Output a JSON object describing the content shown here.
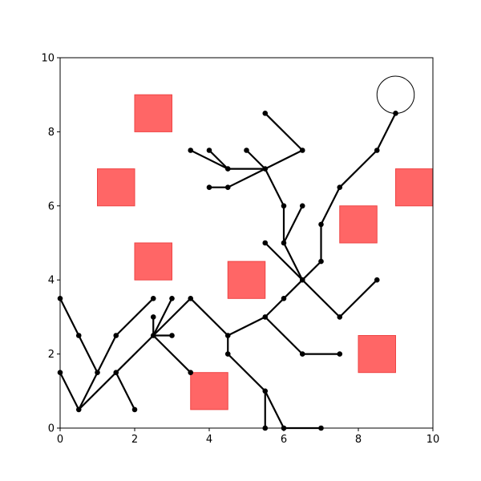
{
  "chart_data": {
    "type": "scatter",
    "title": "",
    "xlabel": "",
    "ylabel": "",
    "xlim": [
      0,
      10
    ],
    "ylim": [
      0,
      10
    ],
    "xticks": [
      0,
      2,
      4,
      6,
      8,
      10
    ],
    "yticks": [
      0,
      2,
      4,
      6,
      8,
      10
    ],
    "xtick_labels": [
      "0",
      "2",
      "4",
      "6",
      "8",
      "10"
    ],
    "ytick_labels": [
      "0",
      "2",
      "4",
      "6",
      "8",
      "10"
    ],
    "grid": false,
    "obstacles": [
      {
        "x": 2,
        "y": 8,
        "w": 1,
        "h": 1
      },
      {
        "x": 1,
        "y": 6,
        "w": 1,
        "h": 1
      },
      {
        "x": 2,
        "y": 4,
        "w": 1,
        "h": 1
      },
      {
        "x": 4.5,
        "y": 3.5,
        "w": 1,
        "h": 1
      },
      {
        "x": 3.5,
        "y": 0.5,
        "w": 1,
        "h": 1
      },
      {
        "x": 7.5,
        "y": 5,
        "w": 1,
        "h": 1
      },
      {
        "x": 9,
        "y": 6,
        "w": 1,
        "h": 1
      },
      {
        "x": 8,
        "y": 1.5,
        "w": 1,
        "h": 1
      }
    ],
    "goal": {
      "x": 9,
      "y": 9,
      "r": 0.5
    },
    "nodes": [
      [
        0,
        3.5
      ],
      [
        0.5,
        2.5
      ],
      [
        1,
        1.5
      ],
      [
        0.5,
        0.5
      ],
      [
        0,
        1.5
      ],
      [
        1.5,
        2.5
      ],
      [
        2.5,
        3.5
      ],
      [
        1.5,
        1.5
      ],
      [
        2,
        0.5
      ],
      [
        2.5,
        2.5
      ],
      [
        2.5,
        3
      ],
      [
        3,
        3.5
      ],
      [
        3,
        2.5
      ],
      [
        3.5,
        1.5
      ],
      [
        3.5,
        3.5
      ],
      [
        4.5,
        2.5
      ],
      [
        4.5,
        2
      ],
      [
        5.5,
        1
      ],
      [
        5.5,
        0
      ],
      [
        6,
        0
      ],
      [
        7,
        0
      ],
      [
        5.5,
        3
      ],
      [
        6.5,
        2
      ],
      [
        7.5,
        2
      ],
      [
        6,
        3.5
      ],
      [
        6.5,
        4
      ],
      [
        5.5,
        5
      ],
      [
        7.5,
        3
      ],
      [
        8.5,
        4
      ],
      [
        7,
        4.5
      ],
      [
        7,
        5.5
      ],
      [
        7.5,
        6.5
      ],
      [
        8.5,
        7.5
      ],
      [
        9,
        8.5
      ],
      [
        6,
        5
      ],
      [
        6,
        6
      ],
      [
        6.5,
        6
      ],
      [
        5.5,
        7
      ],
      [
        5.5,
        8.5
      ],
      [
        6.5,
        7.5
      ],
      [
        5,
        7.5
      ],
      [
        4.5,
        7
      ],
      [
        3.5,
        7.5
      ],
      [
        4,
        7.5
      ],
      [
        4.5,
        6.5
      ],
      [
        4,
        6.5
      ]
    ],
    "edges": [
      [
        [
          0,
          3.5
        ],
        [
          0.5,
          2.5
        ]
      ],
      [
        [
          0.5,
          2.5
        ],
        [
          1,
          1.5
        ]
      ],
      [
        [
          1,
          1.5
        ],
        [
          0.5,
          0.5
        ]
      ],
      [
        [
          0.5,
          0.5
        ],
        [
          0,
          1.5
        ]
      ],
      [
        [
          1,
          1.5
        ],
        [
          1.5,
          2.5
        ]
      ],
      [
        [
          1.5,
          2.5
        ],
        [
          2.5,
          3.5
        ]
      ],
      [
        [
          0.5,
          0.5
        ],
        [
          1.5,
          1.5
        ]
      ],
      [
        [
          1.5,
          1.5
        ],
        [
          2,
          0.5
        ]
      ],
      [
        [
          1.5,
          1.5
        ],
        [
          2.5,
          2.5
        ]
      ],
      [
        [
          2.5,
          2.5
        ],
        [
          2.5,
          3
        ]
      ],
      [
        [
          2.5,
          2.5
        ],
        [
          3,
          3.5
        ]
      ],
      [
        [
          2.5,
          2.5
        ],
        [
          3,
          2.5
        ]
      ],
      [
        [
          2.5,
          2.5
        ],
        [
          3.5,
          1.5
        ]
      ],
      [
        [
          2.5,
          2.5
        ],
        [
          3.5,
          3.5
        ]
      ],
      [
        [
          3.5,
          3.5
        ],
        [
          4.5,
          2.5
        ]
      ],
      [
        [
          4.5,
          2.5
        ],
        [
          4.5,
          2
        ]
      ],
      [
        [
          4.5,
          2
        ],
        [
          5.5,
          1
        ]
      ],
      [
        [
          5.5,
          1
        ],
        [
          5.5,
          0
        ]
      ],
      [
        [
          5.5,
          1
        ],
        [
          6,
          0
        ]
      ],
      [
        [
          6,
          0
        ],
        [
          7,
          0
        ]
      ],
      [
        [
          4.5,
          2.5
        ],
        [
          5.5,
          3
        ]
      ],
      [
        [
          5.5,
          3
        ],
        [
          6.5,
          2
        ]
      ],
      [
        [
          6.5,
          2
        ],
        [
          7.5,
          2
        ]
      ],
      [
        [
          5.5,
          3
        ],
        [
          6,
          3.5
        ]
      ],
      [
        [
          6,
          3.5
        ],
        [
          6.5,
          4
        ]
      ],
      [
        [
          6.5,
          4
        ],
        [
          5.5,
          5
        ]
      ],
      [
        [
          6.5,
          4
        ],
        [
          7.5,
          3
        ]
      ],
      [
        [
          7.5,
          3
        ],
        [
          8.5,
          4
        ]
      ],
      [
        [
          6.5,
          4
        ],
        [
          7,
          4.5
        ]
      ],
      [
        [
          7,
          4.5
        ],
        [
          7,
          5.5
        ]
      ],
      [
        [
          7,
          5.5
        ],
        [
          7.5,
          6.5
        ]
      ],
      [
        [
          7.5,
          6.5
        ],
        [
          8.5,
          7.5
        ]
      ],
      [
        [
          8.5,
          7.5
        ],
        [
          9,
          8.5
        ]
      ],
      [
        [
          6.5,
          4
        ],
        [
          6,
          5
        ]
      ],
      [
        [
          6,
          5
        ],
        [
          6,
          6
        ]
      ],
      [
        [
          6,
          5
        ],
        [
          6.5,
          6
        ]
      ],
      [
        [
          6,
          6
        ],
        [
          5.5,
          7
        ]
      ],
      [
        [
          5.5,
          7
        ],
        [
          4.5,
          7
        ]
      ],
      [
        [
          5.5,
          7
        ],
        [
          5,
          7.5
        ]
      ],
      [
        [
          5.5,
          7
        ],
        [
          4.5,
          6.5
        ]
      ],
      [
        [
          4.5,
          6.5
        ],
        [
          4,
          6.5
        ]
      ],
      [
        [
          4.5,
          7
        ],
        [
          3.5,
          7.5
        ]
      ],
      [
        [
          4.5,
          7
        ],
        [
          4,
          7.5
        ]
      ],
      [
        [
          5.5,
          7
        ],
        [
          6.5,
          7.5
        ]
      ],
      [
        [
          6.5,
          7.5
        ],
        [
          5.5,
          8.5
        ]
      ]
    ],
    "colors": {
      "obstacle": "#ff6666",
      "obstacle_edge": "#ee4444",
      "edge": "#000000",
      "node": "#000000",
      "goal_edge": "#000000"
    }
  }
}
